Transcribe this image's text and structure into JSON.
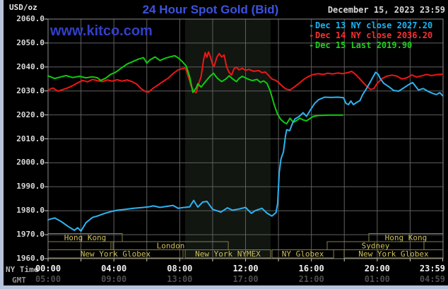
{
  "header": {
    "units_label": "USD/oz",
    "title": "24 Hour Spot Gold (Bid)",
    "datetime": "December 15, 2023 23:59",
    "watermark": "www.kitco.com"
  },
  "legend": [
    {
      "marker": "-",
      "label": "Dec 13 NY close 2027.20",
      "color": "#18b5f5"
    },
    {
      "marker": "-",
      "label": "Dec 14 NY close 2036.20",
      "color": "#f83030"
    },
    {
      "marker": "-",
      "label": "Dec 15 Last 2019.90",
      "color": "#20d020"
    }
  ],
  "axes": {
    "y": {
      "min": 1960,
      "max": 2060,
      "step": 10
    },
    "x_ny": {
      "label": "NY Time",
      "ticks": [
        {
          "label": "00:00",
          "hour": 0
        },
        {
          "label": "04:00",
          "hour": 4
        },
        {
          "label": "08:00",
          "hour": 8
        },
        {
          "label": "12:00",
          "hour": 12
        },
        {
          "label": "16:00",
          "hour": 16
        },
        {
          "label": "20:00",
          "hour": 20
        },
        {
          "label": "23:59",
          "hour": 23.983
        }
      ]
    },
    "x_gmt": {
      "label": "GMT",
      "ticks": [
        {
          "label": "05:00",
          "hour": 0
        },
        {
          "label": "09:00",
          "hour": 4
        },
        {
          "label": "13:00",
          "hour": 8
        },
        {
          "label": "17:00",
          "hour": 12
        },
        {
          "label": "21:00",
          "hour": 16
        },
        {
          "label": "01:00",
          "hour": 20
        },
        {
          "label": "04:59",
          "hour": 23.983
        }
      ]
    }
  },
  "sessions": {
    "text_color": "#cfc05c",
    "border_color": "#857f47",
    "rows": [
      {
        "row": 0,
        "label": "Hong Kong",
        "start_h": 0,
        "end_h": 4.51
      },
      {
        "row": 0,
        "label": "Hong Kong",
        "start_h": 19.49,
        "end_h": 24
      },
      {
        "row": 1,
        "label": "",
        "start_h": 0,
        "end_h": 3.82
      },
      {
        "row": 1,
        "label": "London",
        "start_h": 3.95,
        "end_h": 10.95
      },
      {
        "row": 1,
        "label": "Sydney",
        "start_h": 16.96,
        "end_h": 22.84
      },
      {
        "row": 1,
        "label": "",
        "start_h": 22.84,
        "end_h": 24
      },
      {
        "row": 2,
        "label": "New York Globex",
        "start_h": 0,
        "end_h": 8.2
      },
      {
        "row": 2,
        "label": "New York NYMEX",
        "start_h": 8.33,
        "end_h": 13.52
      },
      {
        "row": 2,
        "label": "NY Globex",
        "start_h": 13.61,
        "end_h": 17.35
      },
      {
        "row": 2,
        "label": "New York Globex",
        "start_h": 17.99,
        "end_h": 24
      }
    ]
  },
  "chart_data": {
    "type": "line",
    "title": "24 Hour Spot Gold (Bid)",
    "xlabel": "NY Time (hours)",
    "ylabel": "USD/oz",
    "x_range": [
      0,
      24
    ],
    "y_range": [
      1960,
      2060
    ],
    "grid": true,
    "grid_x_step_hours": 2,
    "grid_y_step": 10,
    "legend_position": "top-right",
    "nymex_shade_hours": [
      8.33,
      13.52
    ],
    "shade_color": "#111611",
    "grid_color": "#5f5f5f",
    "border_color": "#8a8a8a",
    "series": [
      {
        "name": "Dec 13",
        "close_label": "NY close 2027.20",
        "color": "#2db3f2",
        "points": [
          [
            0,
            1976.2
          ],
          [
            0.4,
            1977.0
          ],
          [
            0.8,
            1975.5
          ],
          [
            1.2,
            1973.5
          ],
          [
            1.6,
            1971.8
          ],
          [
            1.8,
            1972.9
          ],
          [
            2.0,
            1971.5
          ],
          [
            2.3,
            1975.0
          ],
          [
            2.7,
            1977.2
          ],
          [
            3.0,
            1977.8
          ],
          [
            3.4,
            1978.8
          ],
          [
            3.8,
            1979.6
          ],
          [
            4.2,
            1980.2
          ],
          [
            4.7,
            1980.6
          ],
          [
            5.2,
            1981.0
          ],
          [
            5.7,
            1981.3
          ],
          [
            6.1,
            1981.6
          ],
          [
            6.4,
            1982.0
          ],
          [
            6.8,
            1981.4
          ],
          [
            7.2,
            1981.8
          ],
          [
            7.6,
            1982.2
          ],
          [
            7.9,
            1981.0
          ],
          [
            8.2,
            1981.3
          ],
          [
            8.6,
            1981.6
          ],
          [
            8.85,
            1984.3
          ],
          [
            9.1,
            1981.5
          ],
          [
            9.4,
            1983.6
          ],
          [
            9.65,
            1983.9
          ],
          [
            10.0,
            1980.6
          ],
          [
            10.5,
            1979.4
          ],
          [
            10.9,
            1981.2
          ],
          [
            11.2,
            1980.2
          ],
          [
            11.6,
            1980.7
          ],
          [
            12.0,
            1981.4
          ],
          [
            12.35,
            1978.9
          ],
          [
            12.6,
            1980.1
          ],
          [
            13.0,
            1981.0
          ],
          [
            13.3,
            1979.0
          ],
          [
            13.6,
            1977.8
          ],
          [
            13.85,
            1979.2
          ],
          [
            13.95,
            1983.0
          ],
          [
            14.05,
            1996.0
          ],
          [
            14.15,
            2001.5
          ],
          [
            14.22,
            2003.0
          ],
          [
            14.3,
            2004.5
          ],
          [
            14.42,
            2011.0
          ],
          [
            14.5,
            2013.8
          ],
          [
            14.68,
            2013.4
          ],
          [
            14.85,
            2016.5
          ],
          [
            15.0,
            2018.3
          ],
          [
            15.25,
            2019.3
          ],
          [
            15.5,
            2020.9
          ],
          [
            15.7,
            2019.4
          ],
          [
            16.0,
            2022.7
          ],
          [
            16.2,
            2024.8
          ],
          [
            16.45,
            2026.4
          ],
          [
            16.8,
            2027.4
          ],
          [
            17.2,
            2027.3
          ],
          [
            17.6,
            2027.4
          ],
          [
            17.95,
            2027.2
          ],
          [
            18.1,
            2024.8
          ],
          [
            18.25,
            2024.3
          ],
          [
            18.4,
            2025.8
          ],
          [
            18.55,
            2024.3
          ],
          [
            18.75,
            2025.2
          ],
          [
            18.95,
            2026.0
          ],
          [
            19.1,
            2028.3
          ],
          [
            19.35,
            2031.0
          ],
          [
            19.6,
            2034.0
          ],
          [
            19.9,
            2037.8
          ],
          [
            20.05,
            2037.0
          ],
          [
            20.2,
            2035.0
          ],
          [
            20.4,
            2033.2
          ],
          [
            20.7,
            2031.8
          ],
          [
            21.0,
            2030.2
          ],
          [
            21.3,
            2029.9
          ],
          [
            21.6,
            2031.2
          ],
          [
            21.9,
            2032.6
          ],
          [
            22.15,
            2033.5
          ],
          [
            22.5,
            2030.4
          ],
          [
            22.8,
            2031.0
          ],
          [
            23.1,
            2029.8
          ],
          [
            23.4,
            2028.9
          ],
          [
            23.6,
            2028.5
          ],
          [
            23.8,
            2029.3
          ],
          [
            23.98,
            2028.0
          ]
        ]
      },
      {
        "name": "Dec 14",
        "close_label": "NY close 2036.20",
        "color": "#ef1616",
        "points": [
          [
            0,
            2030.4
          ],
          [
            0.3,
            2031.2
          ],
          [
            0.6,
            2029.9
          ],
          [
            0.9,
            2030.6
          ],
          [
            1.2,
            2031.3
          ],
          [
            1.5,
            2032.2
          ],
          [
            1.8,
            2033.4
          ],
          [
            2.1,
            2034.4
          ],
          [
            2.4,
            2033.8
          ],
          [
            2.7,
            2034.8
          ],
          [
            3.0,
            2034.3
          ],
          [
            3.3,
            2033.9
          ],
          [
            3.6,
            2034.6
          ],
          [
            3.9,
            2034.1
          ],
          [
            4.2,
            2034.7
          ],
          [
            4.5,
            2034.1
          ],
          [
            4.8,
            2034.6
          ],
          [
            5.1,
            2033.9
          ],
          [
            5.4,
            2032.8
          ],
          [
            5.65,
            2031.0
          ],
          [
            5.9,
            2029.8
          ],
          [
            6.1,
            2029.5
          ],
          [
            6.4,
            2031.2
          ],
          [
            6.7,
            2032.6
          ],
          [
            7.0,
            2034.0
          ],
          [
            7.3,
            2035.3
          ],
          [
            7.6,
            2037.3
          ],
          [
            7.9,
            2038.8
          ],
          [
            8.2,
            2039.4
          ],
          [
            8.35,
            2039.6
          ],
          [
            8.55,
            2035.5
          ],
          [
            8.7,
            2032.0
          ],
          [
            8.85,
            2029.8
          ],
          [
            9.0,
            2029.3
          ],
          [
            9.15,
            2033.0
          ],
          [
            9.3,
            2036.0
          ],
          [
            9.45,
            2043.0
          ],
          [
            9.55,
            2046.0
          ],
          [
            9.65,
            2044.0
          ],
          [
            9.75,
            2046.3
          ],
          [
            9.85,
            2044.5
          ],
          [
            10.0,
            2041.0
          ],
          [
            10.1,
            2040.4
          ],
          [
            10.25,
            2044.0
          ],
          [
            10.4,
            2045.6
          ],
          [
            10.55,
            2044.2
          ],
          [
            10.7,
            2045.0
          ],
          [
            10.85,
            2040.0
          ],
          [
            11.0,
            2037.8
          ],
          [
            11.15,
            2036.6
          ],
          [
            11.3,
            2039.3
          ],
          [
            11.45,
            2039.9
          ],
          [
            11.6,
            2038.8
          ],
          [
            11.8,
            2039.4
          ],
          [
            12.0,
            2038.6
          ],
          [
            12.2,
            2039.0
          ],
          [
            12.5,
            2038.2
          ],
          [
            12.8,
            2038.5
          ],
          [
            13.0,
            2037.6
          ],
          [
            13.2,
            2037.9
          ],
          [
            13.4,
            2036.5
          ],
          [
            13.6,
            2035.0
          ],
          [
            13.8,
            2034.5
          ],
          [
            14.0,
            2033.6
          ],
          [
            14.2,
            2032.2
          ],
          [
            14.45,
            2030.8
          ],
          [
            14.7,
            2030.4
          ],
          [
            14.95,
            2031.6
          ],
          [
            15.2,
            2032.9
          ],
          [
            15.5,
            2034.6
          ],
          [
            15.8,
            2036.0
          ],
          [
            16.1,
            2036.8
          ],
          [
            16.4,
            2037.2
          ],
          [
            16.7,
            2036.9
          ],
          [
            17.0,
            2037.4
          ],
          [
            17.3,
            2037.1
          ],
          [
            17.6,
            2037.5
          ],
          [
            17.9,
            2037.2
          ],
          [
            18.2,
            2037.6
          ],
          [
            18.45,
            2038.2
          ],
          [
            18.7,
            2036.8
          ],
          [
            19.0,
            2034.6
          ],
          [
            19.3,
            2032.4
          ],
          [
            19.6,
            2030.6
          ],
          [
            19.8,
            2031.0
          ],
          [
            20.0,
            2033.2
          ],
          [
            20.3,
            2035.2
          ],
          [
            20.6,
            2036.2
          ],
          [
            20.9,
            2036.6
          ],
          [
            21.2,
            2036.2
          ],
          [
            21.5,
            2035.0
          ],
          [
            21.8,
            2035.5
          ],
          [
            22.1,
            2036.7
          ],
          [
            22.4,
            2035.8
          ],
          [
            22.7,
            2036.3
          ],
          [
            23.0,
            2036.9
          ],
          [
            23.3,
            2036.4
          ],
          [
            23.6,
            2036.8
          ],
          [
            23.98,
            2037.0
          ]
        ]
      },
      {
        "name": "Dec 15",
        "close_label": "Last 2019.90",
        "color": "#0ecc0e",
        "points": [
          [
            0,
            2036.3
          ],
          [
            0.4,
            2035.2
          ],
          [
            0.8,
            2035.9
          ],
          [
            1.1,
            2036.4
          ],
          [
            1.5,
            2035.6
          ],
          [
            1.9,
            2036.1
          ],
          [
            2.3,
            2035.5
          ],
          [
            2.7,
            2035.9
          ],
          [
            3.0,
            2035.5
          ],
          [
            3.2,
            2034.4
          ],
          [
            3.5,
            2035.3
          ],
          [
            3.8,
            2036.9
          ],
          [
            4.1,
            2037.8
          ],
          [
            4.5,
            2039.8
          ],
          [
            4.8,
            2041.2
          ],
          [
            5.1,
            2042.1
          ],
          [
            5.5,
            2043.3
          ],
          [
            5.8,
            2043.9
          ],
          [
            6.0,
            2041.6
          ],
          [
            6.2,
            2043.0
          ],
          [
            6.5,
            2044.2
          ],
          [
            6.8,
            2042.7
          ],
          [
            7.1,
            2043.6
          ],
          [
            7.45,
            2044.3
          ],
          [
            7.7,
            2044.7
          ],
          [
            7.95,
            2043.6
          ],
          [
            8.15,
            2042.3
          ],
          [
            8.4,
            2040.4
          ],
          [
            8.6,
            2036.0
          ],
          [
            8.8,
            2029.4
          ],
          [
            9.0,
            2031.2
          ],
          [
            9.1,
            2033.0
          ],
          [
            9.3,
            2031.6
          ],
          [
            9.6,
            2034.2
          ],
          [
            9.85,
            2036.2
          ],
          [
            10.05,
            2037.4
          ],
          [
            10.3,
            2035.2
          ],
          [
            10.55,
            2033.9
          ],
          [
            10.8,
            2035.0
          ],
          [
            11.0,
            2036.3
          ],
          [
            11.2,
            2035.1
          ],
          [
            11.45,
            2033.9
          ],
          [
            11.6,
            2035.2
          ],
          [
            11.8,
            2036.1
          ],
          [
            12.1,
            2035.1
          ],
          [
            12.4,
            2034.3
          ],
          [
            12.7,
            2034.8
          ],
          [
            12.9,
            2033.6
          ],
          [
            13.1,
            2034.2
          ],
          [
            13.3,
            2033.2
          ],
          [
            13.5,
            2030.0
          ],
          [
            13.75,
            2024.0
          ],
          [
            13.95,
            2020.2
          ],
          [
            14.15,
            2018.0
          ],
          [
            14.35,
            2016.8
          ],
          [
            14.5,
            2016.3
          ],
          [
            14.7,
            2018.6
          ],
          [
            14.9,
            2016.9
          ],
          [
            15.1,
            2017.6
          ],
          [
            15.3,
            2018.6
          ],
          [
            15.5,
            2017.9
          ],
          [
            15.7,
            2017.5
          ],
          [
            15.9,
            2018.4
          ],
          [
            16.1,
            2019.3
          ],
          [
            16.35,
            2019.7
          ],
          [
            16.6,
            2019.8
          ],
          [
            17.0,
            2019.9
          ],
          [
            17.5,
            2019.9
          ],
          [
            17.9,
            2019.9
          ]
        ]
      }
    ]
  }
}
